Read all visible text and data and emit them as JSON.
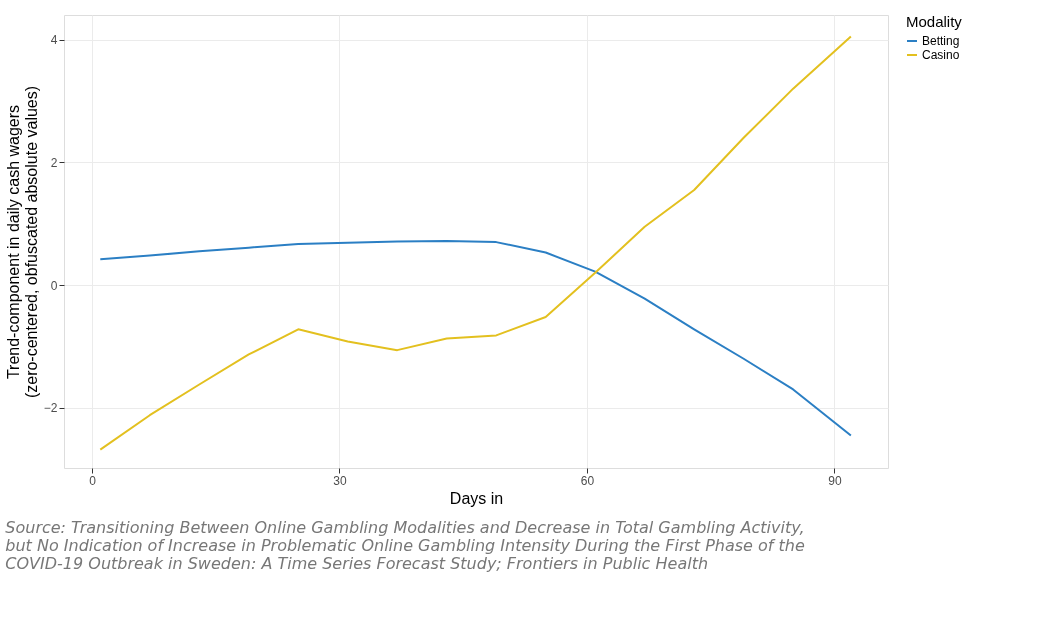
{
  "chart_data": {
    "type": "line",
    "xlabel": "Days in",
    "ylabel": "Trend-component in daily cash wagers\n(zero-centered, obfuscated absolute values)",
    "legend_title": "Modality",
    "x": [
      1,
      7,
      13,
      19,
      25,
      31,
      37,
      43,
      49,
      55,
      61,
      67,
      73,
      79,
      85,
      92
    ],
    "series": [
      {
        "name": "Betting",
        "color": "#2b7fc4",
        "values": [
          0.42,
          0.48,
          0.55,
          0.61,
          0.67,
          0.69,
          0.71,
          0.72,
          0.7,
          0.53,
          0.22,
          -0.22,
          -0.72,
          -1.2,
          -1.7,
          -2.45
        ]
      },
      {
        "name": "Casino",
        "color": "#e3c01f",
        "values": [
          -2.68,
          -2.12,
          -1.62,
          -1.13,
          -0.72,
          -0.92,
          -1.06,
          -0.87,
          -0.82,
          -0.52,
          0.2,
          0.95,
          1.55,
          2.4,
          3.2,
          4.05
        ]
      }
    ],
    "xlim": [
      -3.4,
      96.5
    ],
    "xticks": [
      0,
      30,
      60,
      90
    ],
    "ylim": [
      -2.98,
      4.4
    ],
    "yticks": [
      -2,
      0,
      2,
      4
    ],
    "grid": true,
    "legend": "right",
    "marker": "none",
    "line_style": "solid",
    "annotations": [
      "Source: Transitioning Between Online Gambling Modalities and Decrease in Total Gambling Activity, but No Indication of Increase in Problematic Online Gambling Intensity During the First Phase of the COVID-19 Outbreak in Sweden: A Time Series Forecast Study; Frontiers in Public Health"
    ]
  }
}
